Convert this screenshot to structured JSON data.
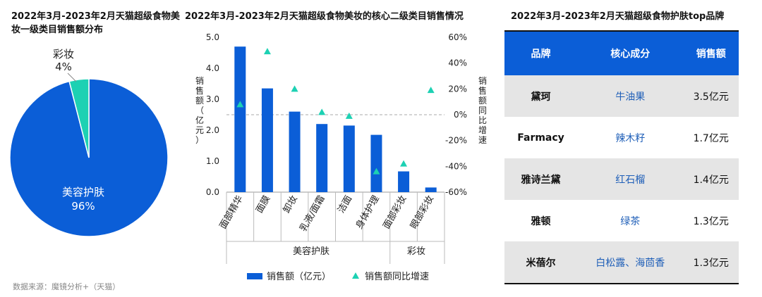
{
  "pie": {
    "title": "2022年3月-2023年2月天猫超级食物美妆一级类目销售额分布",
    "slices": [
      {
        "label": "美容护肤",
        "value": 96,
        "pct": "96%",
        "color": "#0b5ed7"
      },
      {
        "label": "彩妆",
        "value": 4,
        "pct": "4%",
        "color": "#1dd1b3"
      }
    ]
  },
  "bar": {
    "title": "2022年3月-2023年2月天猫超级食物美妆的核心二级类目销售情况",
    "ylabel_left": "销售额（亿元）",
    "ylabel_right": "销售额同比增速",
    "group_labels": [
      "美容护肤",
      "彩妆"
    ],
    "legend": {
      "bar": "销售额（亿元）",
      "marker": "销售额同比增速"
    }
  },
  "chart_data": [
    {
      "type": "pie",
      "title": "2022年3月-2023年2月天猫超级食物美妆一级类目销售额分布",
      "categories": [
        "美容护肤",
        "彩妆"
      ],
      "values": [
        96,
        4
      ]
    },
    {
      "type": "bar",
      "title": "2022年3月-2023年2月天猫超级食物美妆的核心二级类目销售情况",
      "categories": [
        "面部精华",
        "面膜",
        "卸妆",
        "乳液/面霜",
        "洁面",
        "身体护理",
        "面部彩妆",
        "眼部彩妆"
      ],
      "groups": [
        {
          "name": "美容护肤",
          "count": 6
        },
        {
          "name": "彩妆",
          "count": 2
        }
      ],
      "series": [
        {
          "name": "销售额（亿元）",
          "axis": "left",
          "type": "bar",
          "color": "#0b5ed7",
          "values": [
            4.7,
            3.35,
            2.6,
            2.2,
            2.15,
            1.85,
            0.67,
            0.15
          ]
        },
        {
          "name": "销售额同比增速",
          "axis": "right",
          "type": "scatter",
          "color": "#1dd1b3",
          "values": [
            8,
            49,
            20,
            2,
            -1,
            -44,
            -38,
            19
          ]
        }
      ],
      "ylim_left": [
        0,
        5
      ],
      "yticks_left": [
        "0.0",
        "1.0",
        "2.0",
        "3.0",
        "4.0",
        "5.0"
      ],
      "ylim_right": [
        -60,
        60
      ],
      "yticks_right": [
        "-60%",
        "-40%",
        "-20%",
        "0%",
        "20%",
        "40%",
        "60%"
      ],
      "reference_line": 0,
      "legend_position": "bottom"
    }
  ],
  "table": {
    "title": "2022年3月-2023年2月天猫超级食物护肤top品牌",
    "headers": [
      "品牌",
      "核心成分",
      "销售额"
    ],
    "rows": [
      {
        "brand": "黛珂",
        "ingredient": "牛油果",
        "sales": "3.5亿元"
      },
      {
        "brand": "Farmacy",
        "ingredient": "辣木籽",
        "sales": "1.7亿元"
      },
      {
        "brand": "雅诗兰黛",
        "ingredient": "红石榴",
        "sales": "1.4亿元"
      },
      {
        "brand": "雅顿",
        "ingredient": "绿茶",
        "sales": "1.3亿元"
      },
      {
        "brand": "米蓓尔",
        "ingredient": "白松露、海茴香",
        "sales": "1.3亿元"
      }
    ]
  },
  "source": "数据来源：魔镜分析+（天猫）"
}
